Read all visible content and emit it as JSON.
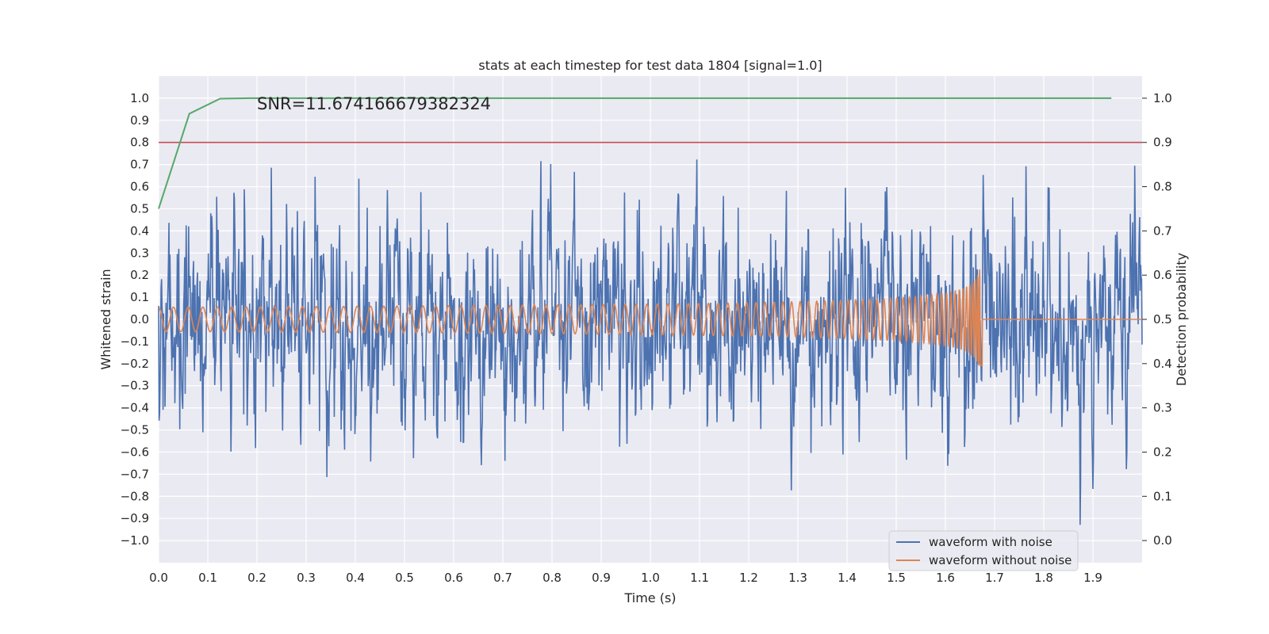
{
  "chart_data": {
    "type": "line",
    "title": "stats at each timestep for test data 1804 [signal=1.0]",
    "xlabel": "Time (s)",
    "ylabel": "Whitened strain",
    "y2label": "Detection probability",
    "xlim": [
      0.0,
      2.0
    ],
    "ylim": [
      -1.1,
      1.1
    ],
    "y2lim": [
      -0.05,
      1.05
    ],
    "x_ticks": [
      0.0,
      0.1,
      0.2,
      0.3,
      0.4,
      0.5,
      0.6,
      0.7,
      0.8,
      0.9,
      1.0,
      1.1,
      1.2,
      1.3,
      1.4,
      1.5,
      1.6,
      1.7,
      1.8,
      1.9
    ],
    "x_tick_labels": [
      "0.0",
      "0.1",
      "0.2",
      "0.3",
      "0.4",
      "0.5",
      "0.6",
      "0.7",
      "0.8",
      "0.9",
      "1.0",
      "1.1",
      "1.2",
      "1.3",
      "1.4",
      "1.5",
      "1.6",
      "1.7",
      "1.8",
      "1.9"
    ],
    "y_ticks": [
      1.0,
      0.9,
      0.8,
      0.7,
      0.6,
      0.5,
      0.4,
      0.3,
      0.2,
      0.1,
      0.0,
      -0.1,
      -0.2,
      -0.3,
      -0.4,
      -0.5,
      -0.6,
      -0.7,
      -0.8,
      -0.9,
      -1.0
    ],
    "y_tick_labels": [
      "1.0",
      "0.9",
      "0.8",
      "0.7",
      "0.6",
      "0.5",
      "0.4",
      "0.3",
      "0.2",
      "0.1",
      "0.0",
      "−0.1",
      "−0.2",
      "−0.3",
      "−0.4",
      "−0.5",
      "−0.6",
      "−0.7",
      "−0.8",
      "−0.9",
      "−1.0"
    ],
    "y2_ticks": [
      1.0,
      0.9,
      0.8,
      0.7,
      0.6,
      0.5,
      0.4,
      0.3,
      0.2,
      0.1,
      0.0
    ],
    "y2_tick_labels": [
      "1.0",
      "0.9",
      "0.8",
      "0.7",
      "0.6",
      "0.5",
      "0.4",
      "0.3",
      "0.2",
      "0.1",
      "0.0"
    ],
    "grid": true,
    "legend_position": "lower-right",
    "annotation": "SNR=11.674166679382324",
    "annotation_at": [
      0.2,
      0.95
    ],
    "series": [
      {
        "name": "waveform with noise",
        "axis": "left",
        "color": "#4c72b0",
        "kind": "noise",
        "x_range": [
          0.0,
          2.0
        ],
        "amplitude_range": [
          -0.93,
          0.92
        ]
      },
      {
        "name": "waveform without noise",
        "axis": "left",
        "color": "#dd8452",
        "kind": "chirp",
        "x_range": [
          0.0,
          2.0
        ],
        "merger_time": 1.675,
        "start_amplitude": 0.055,
        "peak_amplitude": 0.33,
        "start_frequency": 33
      },
      {
        "axis": "right",
        "color": "#55a868",
        "kind": "detection-probability",
        "x": [
          0.0,
          0.0625,
          0.125,
          0.1875,
          0.25,
          0.5,
          1.0,
          1.5,
          1.9375
        ],
        "y": [
          0.75,
          0.965,
          0.999,
          1.0,
          1.0,
          1.0,
          1.0,
          1.0,
          1.0
        ]
      },
      {
        "axis": "right",
        "color": "#c44e52",
        "kind": "threshold",
        "y": 0.9
      }
    ]
  }
}
